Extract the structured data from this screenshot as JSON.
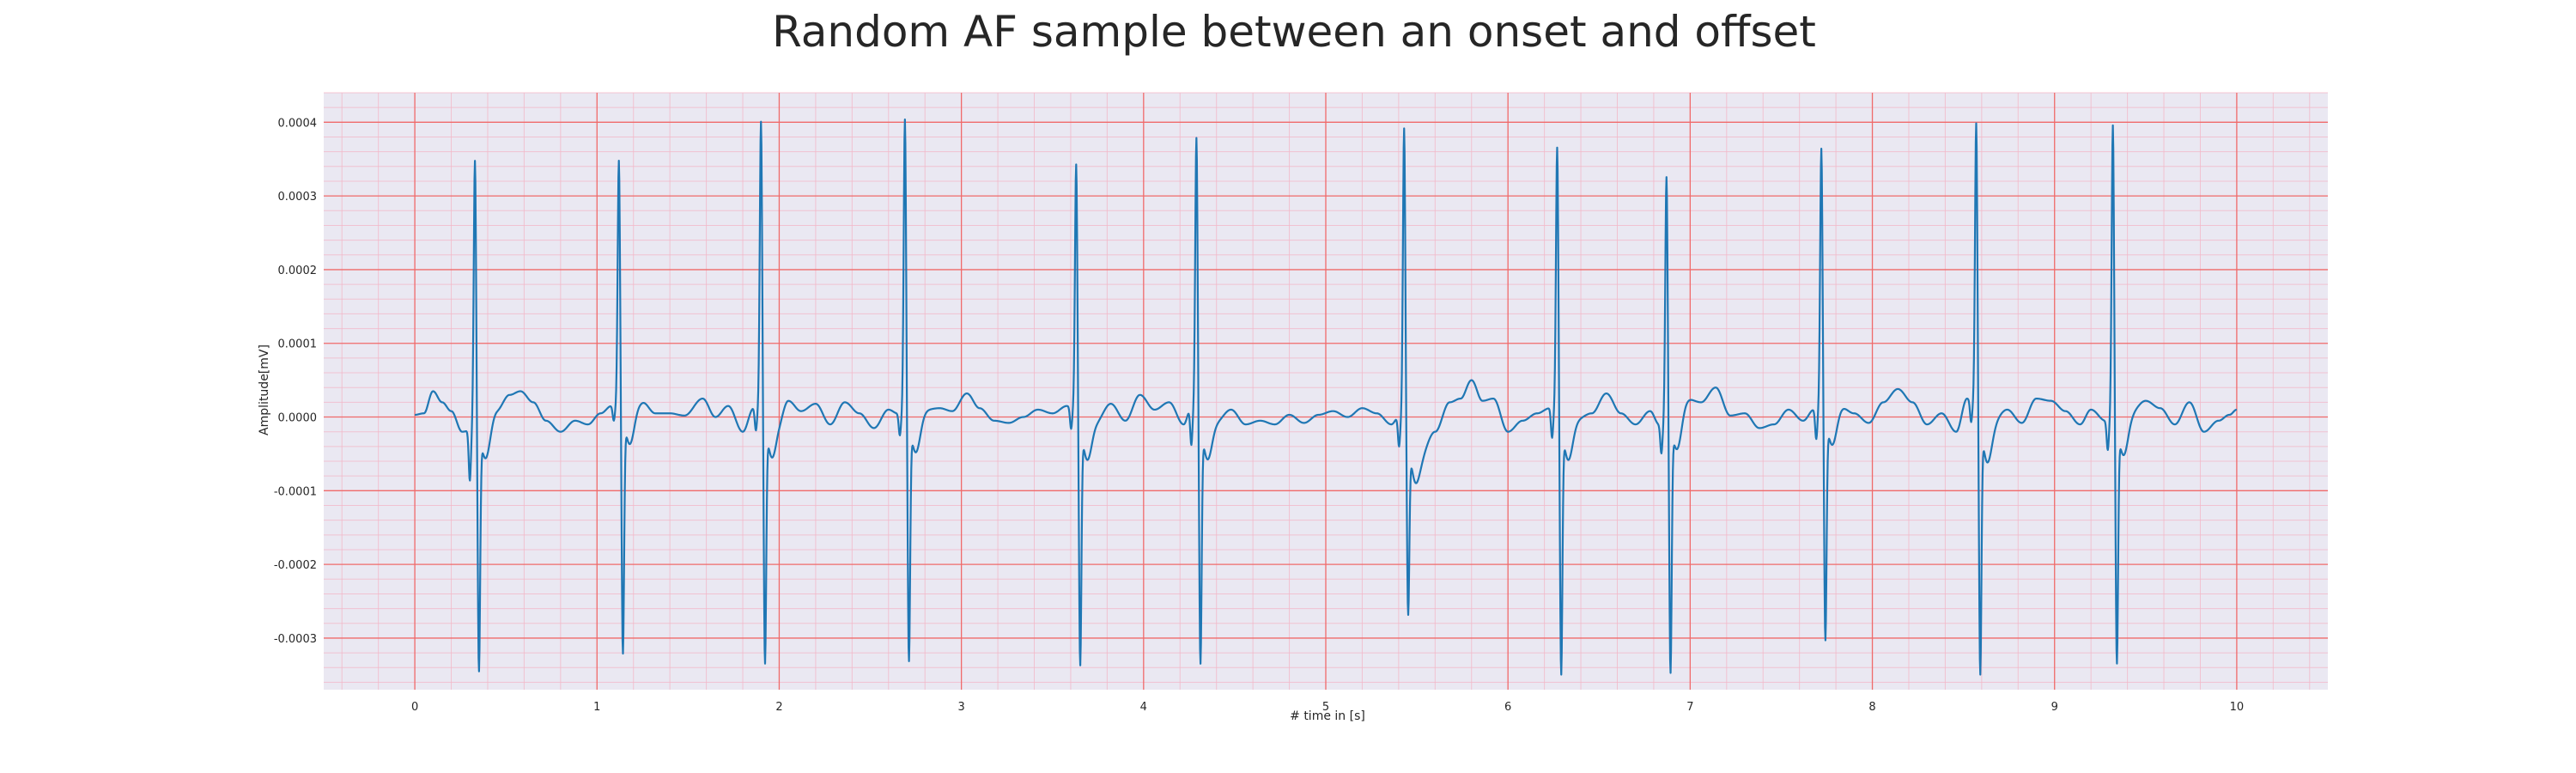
{
  "chart_data": {
    "type": "line",
    "title": "Random AF sample between an onset and offset",
    "xlabel": "# time in [s]",
    "ylabel": "Amplitude[mV]",
    "xlim": [
      -0.5,
      10.5
    ],
    "ylim": [
      -0.00037,
      0.00044
    ],
    "x_ticks": [
      0,
      1,
      2,
      3,
      4,
      5,
      6,
      7,
      8,
      9,
      10
    ],
    "x_tick_labels": [
      "0",
      "1",
      "2",
      "3",
      "4",
      "5",
      "6",
      "7",
      "8",
      "9",
      "10"
    ],
    "y_ticks": [
      -0.0003,
      -0.0002,
      -0.0001,
      0.0,
      0.0001,
      0.0002,
      0.0003,
      0.0004
    ],
    "y_tick_labels": [
      "-0.0003",
      "-0.0002",
      "-0.0001",
      "0.0000",
      "0.0001",
      "0.0002",
      "0.0003",
      "0.0004"
    ],
    "grid": true,
    "minor_grid": true,
    "background_color": "#eae8f2",
    "major_grid_color": "#f06a6a",
    "minor_grid_color": "#f2b8c8",
    "line_color": "#1f77b4",
    "duration_s": 10.0,
    "beats": [
      {
        "t": 0.33,
        "r": 0.000352,
        "s": -0.000328,
        "q": -7e-05
      },
      {
        "t": 1.12,
        "r": 0.000352,
        "s": -0.000305,
        "q": -2e-05
      },
      {
        "t": 1.9,
        "r": 0.000405,
        "s": -0.000318,
        "q": -3e-05
      },
      {
        "t": 2.69,
        "r": 0.000408,
        "s": -0.000315,
        "q": -3e-05
      },
      {
        "t": 3.63,
        "r": 0.000347,
        "s": -0.00032,
        "q": -3e-05
      },
      {
        "t": 4.29,
        "r": 0.000383,
        "s": -0.000318,
        "q": -5e-05
      },
      {
        "t": 5.43,
        "r": 0.000395,
        "s": -0.000255,
        "q": -4e-05
      },
      {
        "t": 6.27,
        "r": 0.00037,
        "s": -0.000332,
        "q": -4e-05
      },
      {
        "t": 6.87,
        "r": 0.00033,
        "s": -0.00033,
        "q": -4e-05
      },
      {
        "t": 7.72,
        "r": 0.000368,
        "s": -0.000288,
        "q": -4e-05
      },
      {
        "t": 8.57,
        "r": 0.000403,
        "s": -0.000332,
        "q": -3e-05
      },
      {
        "t": 9.32,
        "r": 0.0004,
        "s": -0.000318,
        "q": -4e-05
      }
    ],
    "baseline_knots": [
      [
        0.0,
        3e-06
      ],
      [
        0.05,
        5e-06
      ],
      [
        0.1,
        3.5e-05
      ],
      [
        0.15,
        2e-05
      ],
      [
        0.2,
        8e-06
      ],
      [
        0.26,
        -2e-05
      ],
      [
        0.45,
        1e-05
      ],
      [
        0.52,
        3e-05
      ],
      [
        0.58,
        3.5e-05
      ],
      [
        0.65,
        2e-05
      ],
      [
        0.72,
        -5e-06
      ],
      [
        0.8,
        -2e-05
      ],
      [
        0.88,
        -5e-06
      ],
      [
        0.95,
        -1e-05
      ],
      [
        1.02,
        5e-06
      ],
      [
        1.08,
        1.5e-05
      ],
      [
        1.25,
        2e-05
      ],
      [
        1.32,
        5e-06
      ],
      [
        1.4,
        5e-06
      ],
      [
        1.48,
        2e-06
      ],
      [
        1.58,
        2.5e-05
      ],
      [
        1.65,
        0.0
      ],
      [
        1.72,
        1.5e-05
      ],
      [
        1.8,
        -2e-05
      ],
      [
        1.86,
        1.2e-05
      ],
      [
        2.0,
        0.0
      ],
      [
        2.05,
        2.2e-05
      ],
      [
        2.12,
        8e-06
      ],
      [
        2.2,
        1.8e-05
      ],
      [
        2.28,
        -1e-05
      ],
      [
        2.36,
        2e-05
      ],
      [
        2.44,
        5e-06
      ],
      [
        2.52,
        -1.5e-05
      ],
      [
        2.6,
        1e-05
      ],
      [
        2.65,
        5e-06
      ],
      [
        2.8,
        1e-05
      ],
      [
        2.88,
        1.2e-05
      ],
      [
        2.95,
        8e-06
      ],
      [
        3.03,
        3.2e-05
      ],
      [
        3.1,
        1.2e-05
      ],
      [
        3.18,
        -5e-06
      ],
      [
        3.26,
        -8e-06
      ],
      [
        3.34,
        0.0
      ],
      [
        3.42,
        1e-05
      ],
      [
        3.5,
        5e-06
      ],
      [
        3.58,
        1.5e-05
      ],
      [
        3.74,
        -5e-06
      ],
      [
        3.82,
        1.8e-05
      ],
      [
        3.9,
        -5e-06
      ],
      [
        3.98,
        3e-05
      ],
      [
        4.06,
        1e-05
      ],
      [
        4.14,
        2e-05
      ],
      [
        4.22,
        -1e-05
      ],
      [
        4.26,
        1.2e-05
      ],
      [
        4.4,
        -5e-06
      ],
      [
        4.48,
        1e-05
      ],
      [
        4.56,
        -1e-05
      ],
      [
        4.64,
        -5e-06
      ],
      [
        4.72,
        -1e-05
      ],
      [
        4.8,
        3e-06
      ],
      [
        4.88,
        -8e-06
      ],
      [
        4.96,
        3e-06
      ],
      [
        5.04,
        8e-06
      ],
      [
        5.12,
        0.0
      ],
      [
        5.2,
        1.2e-05
      ],
      [
        5.28,
        5e-06
      ],
      [
        5.36,
        -1e-05
      ],
      [
        5.4,
        0.0
      ],
      [
        5.52,
        -5e-05
      ],
      [
        5.6,
        -2e-05
      ],
      [
        5.68,
        2e-05
      ],
      [
        5.74,
        2.5e-05
      ],
      [
        5.8,
        5e-05
      ],
      [
        5.86,
        2.2e-05
      ],
      [
        5.92,
        2.5e-05
      ],
      [
        6.0,
        -2e-05
      ],
      [
        6.08,
        -5e-06
      ],
      [
        6.16,
        5e-06
      ],
      [
        6.23,
        1.2e-05
      ],
      [
        6.38,
        -2e-06
      ],
      [
        6.46,
        5e-06
      ],
      [
        6.54,
        3.2e-05
      ],
      [
        6.62,
        5e-06
      ],
      [
        6.7,
        -1e-05
      ],
      [
        6.78,
        8e-06
      ],
      [
        6.83,
        -1e-05
      ],
      [
        6.98,
        2.5e-05
      ],
      [
        7.06,
        2e-05
      ],
      [
        7.14,
        4e-05
      ],
      [
        7.22,
        2e-06
      ],
      [
        7.3,
        5e-06
      ],
      [
        7.38,
        -1.5e-05
      ],
      [
        7.46,
        -1e-05
      ],
      [
        7.54,
        1e-05
      ],
      [
        7.62,
        -5e-06
      ],
      [
        7.68,
        1e-05
      ],
      [
        7.82,
        1.5e-05
      ],
      [
        7.9,
        5e-06
      ],
      [
        7.98,
        -8e-06
      ],
      [
        8.06,
        2e-05
      ],
      [
        8.14,
        3.8e-05
      ],
      [
        8.22,
        2e-05
      ],
      [
        8.3,
        -1e-05
      ],
      [
        8.38,
        5e-06
      ],
      [
        8.46,
        -2e-05
      ],
      [
        8.52,
        2.5e-05
      ],
      [
        8.66,
        -5e-06
      ],
      [
        8.74,
        1e-05
      ],
      [
        8.82,
        -8e-06
      ],
      [
        8.9,
        2.5e-05
      ],
      [
        8.98,
        2.2e-05
      ],
      [
        9.06,
        8e-06
      ],
      [
        9.14,
        -1e-05
      ],
      [
        9.2,
        1e-05
      ],
      [
        9.28,
        -5e-06
      ],
      [
        9.42,
        8e-06
      ],
      [
        9.5,
        2.2e-05
      ],
      [
        9.58,
        1.2e-05
      ],
      [
        9.66,
        -1e-05
      ],
      [
        9.74,
        2e-05
      ],
      [
        9.82,
        -2e-05
      ],
      [
        9.9,
        -5e-06
      ],
      [
        9.96,
        3e-06
      ],
      [
        10.0,
        1e-05
      ]
    ]
  }
}
